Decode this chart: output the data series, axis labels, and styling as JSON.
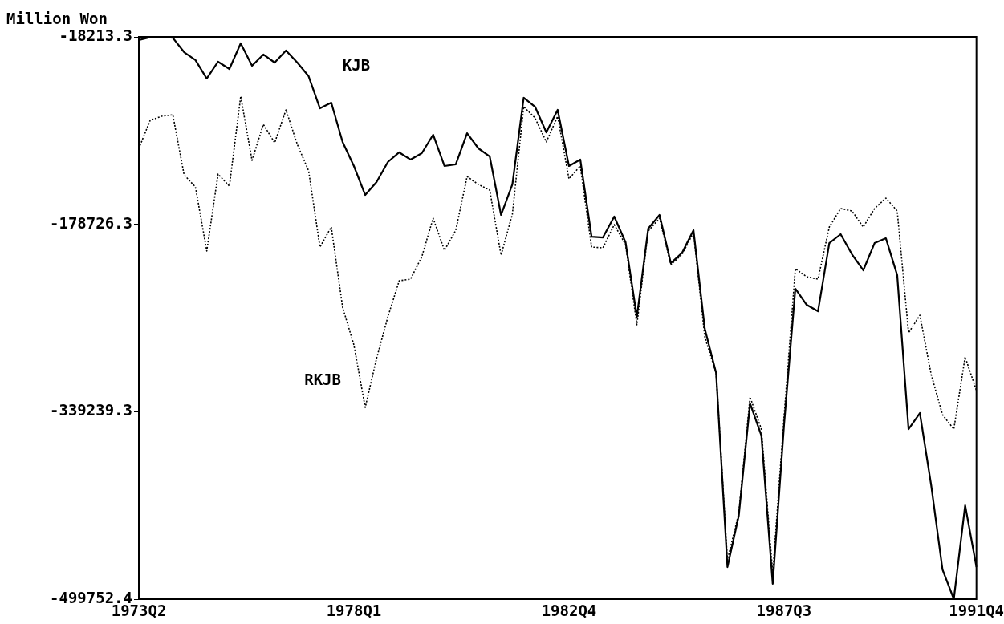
{
  "chart_data": {
    "type": "line",
    "ylabel": "Million Won",
    "categories": [
      "1973Q2",
      null,
      null,
      null,
      null,
      null,
      null,
      null,
      null,
      null,
      null,
      null,
      null,
      null,
      null,
      null,
      null,
      null,
      null,
      "1978Q1",
      null,
      null,
      null,
      null,
      null,
      null,
      null,
      null,
      null,
      null,
      null,
      null,
      null,
      null,
      null,
      null,
      null,
      null,
      "1982Q4",
      null,
      null,
      null,
      null,
      null,
      null,
      null,
      null,
      null,
      null,
      null,
      null,
      null,
      null,
      null,
      null,
      null,
      null,
      "1987Q3",
      null,
      null,
      null,
      null,
      null,
      null,
      null,
      null,
      null,
      null,
      null,
      null,
      null,
      null,
      null,
      null,
      "1991Q4"
    ],
    "series": [
      {
        "name": "KJB",
        "color": "#000000",
        "line_style": "solid",
        "values": [
          -21000,
          -18500,
          -18213.3,
          -19000,
          -31300,
          -38100,
          -53900,
          -39500,
          -45700,
          -23700,
          -42900,
          -33300,
          -40200,
          -29900,
          -40200,
          -51900,
          -79400,
          -74500,
          -108200,
          -128800,
          -153600,
          -142600,
          -125400,
          -117100,
          -123300,
          -117800,
          -102000,
          -128800,
          -127400,
          -100700,
          -113700,
          -120600,
          -170700,
          -144600,
          -70400,
          -78000,
          -100000,
          -80700,
          -128800,
          -123300,
          -189300,
          -190000,
          -172100,
          -194100,
          -258000,
          -182400,
          -170700,
          -211900,
          -203000,
          -183800,
          -268300,
          -306100,
          -472300,
          -428400,
          -332200,
          -359700,
          -486700,
          -350700,
          -233900,
          -247700,
          -253200,
          -194800,
          -187200,
          -204400,
          -218100,
          -194800,
          -190700,
          -222300,
          -354200,
          -340400,
          -402200,
          -474400,
          -499752.4,
          -419400,
          -472300
        ]
      },
      {
        "name": "RKJB",
        "color": "#000000",
        "line_style": "dotted",
        "values": [
          -113700,
          -89700,
          -86200,
          -84900,
          -136400,
          -146700,
          -201600,
          -135700,
          -146000,
          -69100,
          -124000,
          -93100,
          -108900,
          -80700,
          -110300,
          -132900,
          -198200,
          -181000,
          -249700,
          -282000,
          -335600,
          -293700,
          -258000,
          -227100,
          -225700,
          -206500,
          -173500,
          -201000,
          -183800,
          -137800,
          -144600,
          -149400,
          -205100,
          -170000,
          -78000,
          -87600,
          -108200,
          -86200,
          -139800,
          -128800,
          -198200,
          -198900,
          -179000,
          -196100,
          -264800,
          -184500,
          -173500,
          -213300,
          -204400,
          -185800,
          -275200,
          -306100,
          -466100,
          -426300,
          -326700,
          -354200,
          -477800,
          -343900,
          -216800,
          -223600,
          -225700,
          -181000,
          -165200,
          -167300,
          -181000,
          -165200,
          -156300,
          -167300,
          -271700,
          -256600,
          -307400,
          -341800,
          -354200,
          -292300,
          -321200
        ]
      }
    ],
    "ylim": [
      -499752.4,
      -18213.3
    ],
    "yticks": [
      -18213.3,
      -178726.3,
      -339239.3,
      -499752.4
    ],
    "legend": false
  }
}
